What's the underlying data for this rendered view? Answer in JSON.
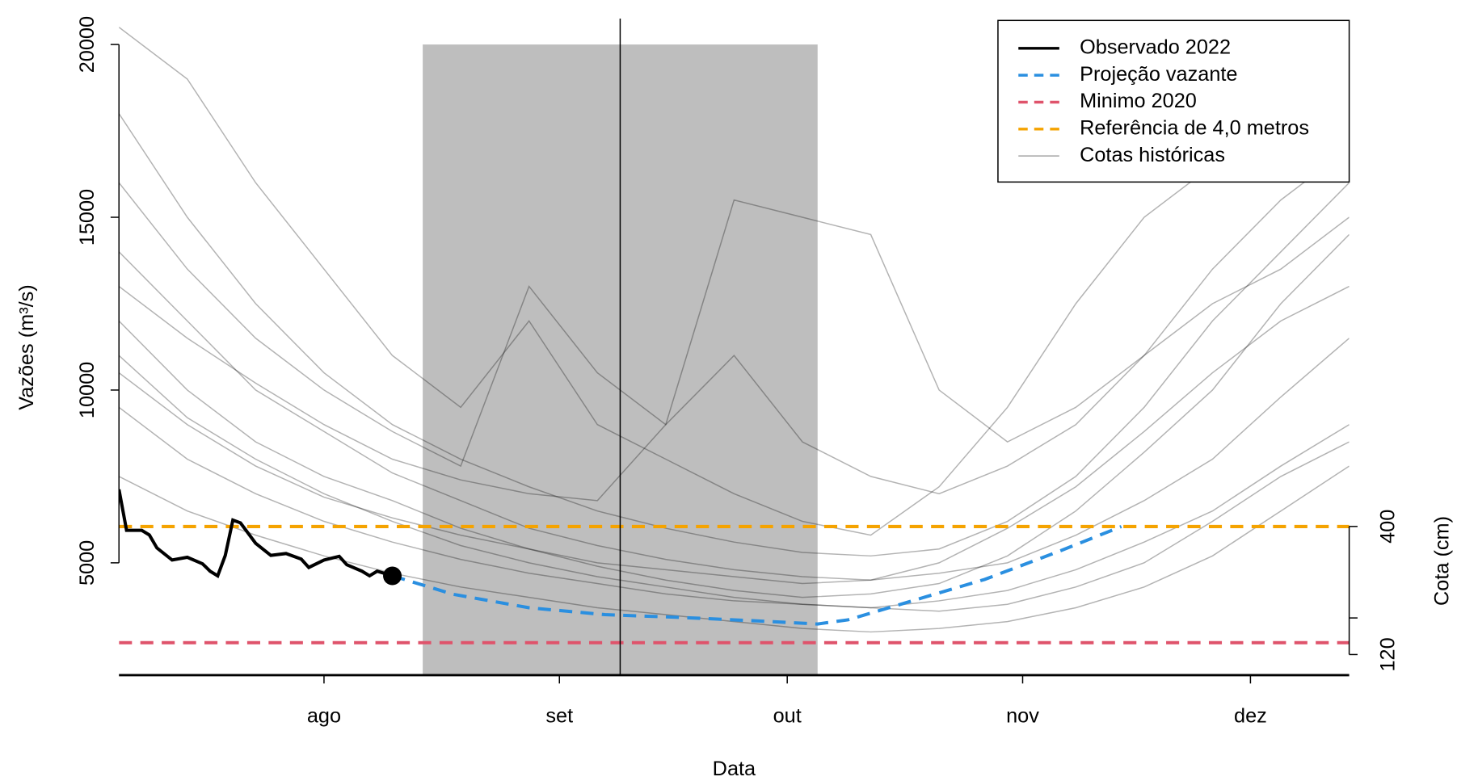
{
  "chart_data": {
    "type": "line",
    "x_label": "Data",
    "y_label": "Vazões (m³/s)",
    "y2_label": "Cota (cm)",
    "xlim": [
      186,
      348
    ],
    "xticks": [
      {
        "value": 213,
        "label": "ago"
      },
      {
        "value": 244,
        "label": "set"
      },
      {
        "value": 274,
        "label": "out"
      },
      {
        "value": 305,
        "label": "nov"
      },
      {
        "value": 335,
        "label": "dez"
      }
    ],
    "ylim": [
      1750,
      20750
    ],
    "yticks": [
      5000,
      10000,
      15000,
      20000
    ],
    "y2lim": [
      75,
      1510
    ],
    "y2ticks": [
      120,
      {
        "value": 200,
        "label": null
      },
      400
    ],
    "band_x": [
      226,
      278
    ],
    "band_top": 20000,
    "vline_x": 252,
    "legend": "top-right",
    "series": [
      {
        "name": "Observado 2022",
        "color": "#000000",
        "dashed": false,
        "x": [
          186,
          187,
          189,
          190,
          191,
          193,
          195,
          197,
          198,
          199,
          200,
          201,
          202,
          204,
          206,
          208,
          210,
          211,
          213,
          215,
          216,
          218,
          219,
          220,
          222
        ],
        "values": [
          7124,
          5941,
          5941,
          5806,
          5430,
          5081,
          5161,
          4973,
          4758,
          4624,
          5215,
          6236,
          6156,
          5565,
          5215,
          5269,
          5108,
          4866,
          5081,
          5188,
          4946,
          4758,
          4624,
          4758,
          4624
        ]
      },
      {
        "name": "Projeção vazante",
        "color": "#2a8fe0",
        "dashed": true,
        "x": [
          222,
          230,
          240,
          250,
          260,
          270,
          278,
          282,
          290,
          300,
          310,
          318
        ],
        "values": [
          4624,
          4090,
          3700,
          3500,
          3420,
          3320,
          3230,
          3350,
          3870,
          4520,
          5350,
          6050
        ]
      },
      {
        "name": "Minimo 2020",
        "color": "#df536b",
        "dashed": true,
        "hline": 2690
      },
      {
        "name": "Referência de 4,0 metros",
        "color": "#f5a300",
        "dashed": true,
        "hline": 6050
      },
      {
        "name": "Cotas históricas",
        "color": "#b3b3b3",
        "dashed": false,
        "x": [
          186,
          195,
          204,
          213,
          222,
          231,
          240,
          249,
          258,
          267,
          276,
          285,
          294,
          303,
          312,
          321,
          330,
          339,
          348
        ],
        "lines": [
          [
            18000,
            15000,
            12500,
            10500,
            9000,
            8000,
            7200,
            6500,
            6000,
            5600,
            5300,
            5200,
            5400,
            6200,
            7500,
            9500,
            12000,
            14000,
            16000
          ],
          [
            14000,
            12000,
            10000,
            8800,
            7600,
            6800,
            6000,
            5500,
            5100,
            4800,
            4600,
            4500,
            4700,
            5000,
            5800,
            6800,
            8000,
            9800,
            11500
          ],
          [
            20500,
            19000,
            16000,
            13500,
            11000,
            9500,
            12000,
            9000,
            8000,
            7000,
            6200,
            5800,
            7200,
            9500,
            12500,
            15000,
            16500,
            18500,
            20000
          ],
          [
            12000,
            10000,
            8500,
            7500,
            6800,
            6000,
            5400,
            4900,
            4500,
            4200,
            4000,
            4100,
            4400,
            5200,
            6500,
            8200,
            10000,
            12500,
            14500
          ],
          [
            9500,
            8000,
            7000,
            6200,
            5600,
            5100,
            4700,
            4400,
            4100,
            3900,
            3800,
            3700,
            3900,
            4200,
            4800,
            5600,
            6500,
            7800,
            9000
          ],
          [
            16000,
            13500,
            11500,
            10000,
            8800,
            7800,
            13000,
            10500,
            9000,
            11000,
            8500,
            7500,
            7000,
            7800,
            9000,
            11000,
            13500,
            15500,
            17000
          ],
          [
            11000,
            9200,
            8000,
            7000,
            6200,
            5500,
            5000,
            4600,
            4300,
            4000,
            3800,
            3700,
            3600,
            3800,
            4300,
            5000,
            6200,
            7500,
            8500
          ],
          [
            7500,
            6500,
            5800,
            5200,
            4700,
            4300,
            4000,
            3700,
            3500,
            3300,
            3100,
            3000,
            3100,
            3300,
            3700,
            4300,
            5200,
            6500,
            7800
          ],
          [
            13000,
            11500,
            10200,
            9000,
            8000,
            7400,
            7000,
            6800,
            9000,
            15500,
            15000,
            14500,
            10000,
            8500,
            9500,
            11000,
            12500,
            13500,
            15000
          ],
          [
            10500,
            9000,
            7800,
            6900,
            6300,
            5800,
            5400,
            5000,
            4800,
            4600,
            4400,
            4500,
            5000,
            6000,
            7200,
            8800,
            10500,
            12000,
            13000
          ]
        ]
      }
    ]
  }
}
